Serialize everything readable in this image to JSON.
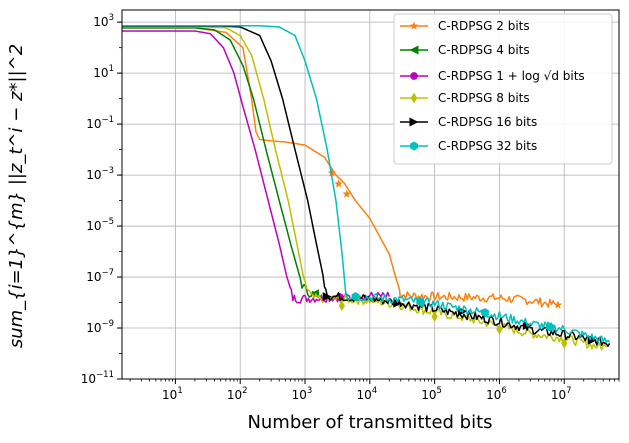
{
  "chart_data": {
    "type": "line",
    "xscale": "log",
    "yscale": "log",
    "xlim": [
      1.5,
      70000000
    ],
    "ylim": [
      1e-11,
      3000
    ],
    "xlabel": "Number of transmitted bits",
    "ylabel": "sum_{i=1}^{m} ||z_t^i − z*||^2",
    "x_tick_labels": [
      {
        "value": 10,
        "mant": "10",
        "exp": "1"
      },
      {
        "value": 100,
        "mant": "10",
        "exp": "2"
      },
      {
        "value": 1000,
        "mant": "10",
        "exp": "3"
      },
      {
        "value": 10000,
        "mant": "10",
        "exp": "4"
      },
      {
        "value": 100000,
        "mant": "10",
        "exp": "5"
      },
      {
        "value": 1000000,
        "mant": "10",
        "exp": "6"
      },
      {
        "value": 10000000,
        "mant": "10",
        "exp": "7"
      }
    ],
    "y_tick_labels": [
      {
        "value": 1e-11,
        "mant": "10",
        "exp": "−11"
      },
      {
        "value": 1e-09,
        "mant": "10",
        "exp": "−9"
      },
      {
        "value": 1e-07,
        "mant": "10",
        "exp": "−7"
      },
      {
        "value": 1e-05,
        "mant": "10",
        "exp": "−5"
      },
      {
        "value": 0.001,
        "mant": "10",
        "exp": "−3"
      },
      {
        "value": 0.1,
        "mant": "10",
        "exp": "−1"
      },
      {
        "value": 10,
        "mant": "10",
        "exp": "1"
      },
      {
        "value": 1000,
        "mant": "10",
        "exp": "3"
      }
    ],
    "grid": true,
    "legend_position": "top-right",
    "series": [
      {
        "name": "C-RDPSG 2 bits",
        "color": "#ff7f0e",
        "marker": "star",
        "points": [
          [
            1.5,
            600
          ],
          [
            20,
            600
          ],
          [
            60,
            400
          ],
          [
            110,
            100
          ],
          [
            150,
            1
          ],
          [
            175,
            0.05
          ],
          [
            200,
            0.025
          ],
          [
            300,
            0.022
          ],
          [
            500,
            0.02
          ],
          [
            1000,
            0.015
          ],
          [
            2000,
            0.005
          ],
          [
            3000,
            0.001
          ],
          [
            4000,
            0.0005
          ],
          [
            6000,
            0.0001
          ],
          [
            10000,
            2e-05
          ],
          [
            15000,
            3e-06
          ],
          [
            20000,
            8e-07
          ],
          [
            25000,
            1e-07
          ],
          [
            28000,
            4e-08
          ],
          [
            30000,
            2e-08
          ],
          [
            60000,
            1.8e-08
          ],
          [
            100000,
            1.7e-08
          ],
          [
            300000,
            1.6e-08
          ],
          [
            1000000,
            1.5e-08
          ],
          [
            3000000,
            1.2e-08
          ],
          [
            8000000,
            8e-09
          ]
        ],
        "marker_points": [
          [
            2600,
            0.0012
          ],
          [
            3300,
            0.00045
          ],
          [
            4400,
            0.00018
          ],
          [
            8000000,
            8e-09
          ]
        ]
      },
      {
        "name": "C-RDPSG 4 bits",
        "color": "#008000",
        "marker": "triangle-left",
        "points": [
          [
            1.5,
            600
          ],
          [
            20,
            600
          ],
          [
            40,
            500
          ],
          [
            70,
            200
          ],
          [
            110,
            20
          ],
          [
            160,
            1
          ],
          [
            250,
            0.01
          ],
          [
            400,
            0.0001
          ],
          [
            600,
            2e-06
          ],
          [
            900,
            5e-08
          ],
          [
            1100,
            2.5e-08
          ],
          [
            1400,
            2.2e-08
          ]
        ],
        "marker_points": [
          [
            1400,
            2.2e-08
          ]
        ]
      },
      {
        "name": "C-RDPSG 1 + log √d bits",
        "color": "#bf00bf",
        "marker": "circle",
        "points": [
          [
            1.5,
            450
          ],
          [
            20,
            450
          ],
          [
            35,
            350
          ],
          [
            55,
            100
          ],
          [
            80,
            10
          ],
          [
            110,
            0.5
          ],
          [
            170,
            0.01
          ],
          [
            270,
            0.0001
          ],
          [
            400,
            2e-06
          ],
          [
            550,
            6e-08
          ],
          [
            650,
            1.5e-08
          ],
          [
            800,
            1.4e-08
          ],
          [
            1500,
            1.5e-08
          ],
          [
            3000,
            1.6e-08
          ],
          [
            6000,
            1.7e-08
          ],
          [
            10000,
            1.8e-08
          ],
          [
            20000,
            1.7e-08
          ]
        ],
        "marker_points": [
          [
            3400,
            1.65e-08
          ]
        ]
      },
      {
        "name": "C-RDPSG 8 bits",
        "color": "#bfbf00",
        "marker": "thin-diamond",
        "points": [
          [
            1.5,
            650
          ],
          [
            30,
            650
          ],
          [
            60,
            600
          ],
          [
            100,
            300
          ],
          [
            150,
            50
          ],
          [
            230,
            1
          ],
          [
            350,
            0.01
          ],
          [
            550,
            0.0001
          ],
          [
            750,
            2e-06
          ],
          [
            1000,
            5e-08
          ],
          [
            1300,
            1.5e-08
          ],
          [
            2000,
            1.4e-08
          ],
          [
            5000,
            1.3e-08
          ],
          [
            10000,
            1.2e-08
          ],
          [
            30000,
            8e-09
          ],
          [
            100000,
            4e-09
          ],
          [
            300000,
            2.5e-09
          ],
          [
            1000000,
            1.2e-09
          ],
          [
            3000000,
            6e-10
          ],
          [
            10000000,
            4e-10
          ],
          [
            30000000,
            2e-10
          ],
          [
            45000000,
            1.8e-10
          ]
        ],
        "marker_points": [
          [
            3700,
            7.5e-09
          ],
          [
            100000,
            2.8e-09
          ],
          [
            1000000,
            9e-10
          ],
          [
            10000000,
            2.5e-10
          ]
        ]
      },
      {
        "name": "C-RDPSG 16 bits",
        "color": "#000000",
        "marker": "triangle-right",
        "points": [
          [
            1.5,
            700
          ],
          [
            50,
            700
          ],
          [
            100,
            650
          ],
          [
            200,
            300
          ],
          [
            300,
            30
          ],
          [
            450,
            1
          ],
          [
            700,
            0.01
          ],
          [
            1100,
            0.0001
          ],
          [
            1500,
            2e-06
          ],
          [
            2000,
            6e-08
          ],
          [
            2300,
            1.8e-08
          ],
          [
            5000,
            1.6e-08
          ],
          [
            10000,
            1.4e-08
          ],
          [
            30000,
            1e-08
          ],
          [
            100000,
            5.5e-09
          ],
          [
            300000,
            3.3e-09
          ],
          [
            1000000,
            1.8e-09
          ],
          [
            3000000,
            9e-10
          ],
          [
            10000000,
            5.5e-10
          ],
          [
            30000000,
            3.2e-10
          ],
          [
            50000000,
            2.5e-10
          ]
        ],
        "marker_points": [
          [
            2200,
            1.7e-08
          ],
          [
            27000,
            9.5e-09
          ],
          [
            270000,
            4.5e-09
          ],
          [
            2700000,
            1.25e-09
          ],
          [
            27000000,
            3.3e-10
          ]
        ]
      },
      {
        "name": "C-RDPSG 32 bits",
        "color": "#00bfbf",
        "marker": "hexagon",
        "points": [
          [
            1.5,
            720
          ],
          [
            200,
            720
          ],
          [
            400,
            650
          ],
          [
            700,
            300
          ],
          [
            1000,
            30
          ],
          [
            1500,
            1
          ],
          [
            2200,
            0.01
          ],
          [
            3000,
            0.0001
          ],
          [
            3700,
            1e-06
          ],
          [
            4200,
            3.5e-08
          ],
          [
            4500,
            1.8e-08
          ],
          [
            10000,
            1.6e-08
          ],
          [
            30000,
            1.3e-08
          ],
          [
            100000,
            9e-09
          ],
          [
            300000,
            5.5e-09
          ],
          [
            1000000,
            3e-09
          ],
          [
            3000000,
            1.5e-09
          ],
          [
            10000000,
            9e-10
          ],
          [
            30000000,
            4e-10
          ],
          [
            50000000,
            2.8e-10
          ]
        ],
        "marker_points": [
          [
            6000,
            1.7e-08
          ],
          [
            60000,
            1.1e-08
          ],
          [
            600000,
            4e-09
          ],
          [
            6000000,
            1.1e-09
          ]
        ]
      }
    ]
  }
}
